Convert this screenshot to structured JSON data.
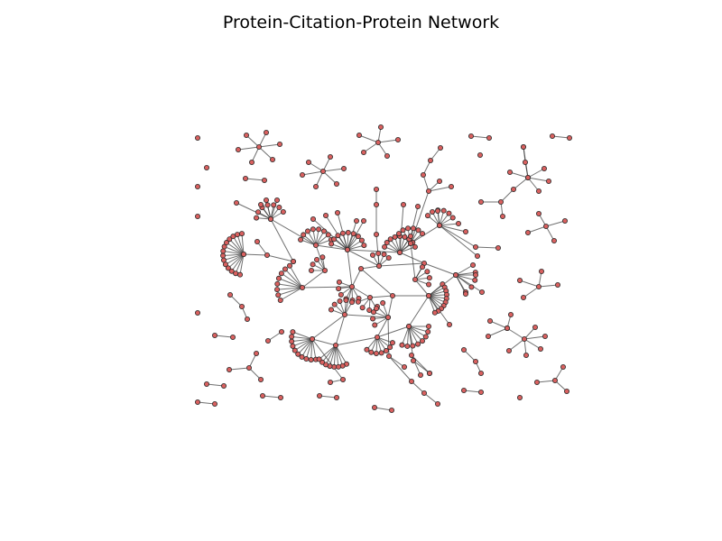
{
  "figure": {
    "title": "Protein-Citation-Protein Network",
    "node_color": "#d9605f",
    "node_edge_color": "#2a2a2a",
    "edge_color": "#333333"
  }
}
